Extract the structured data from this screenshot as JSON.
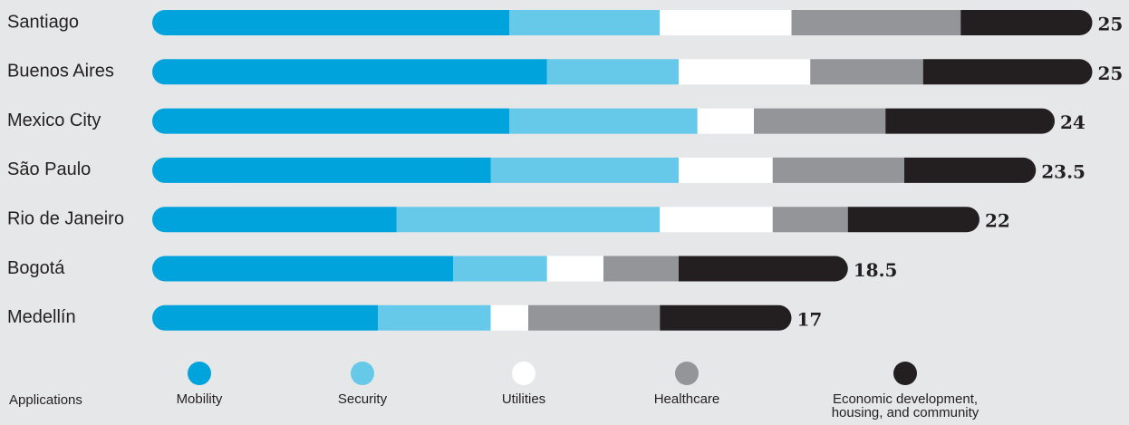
{
  "chart_data": {
    "type": "stacked-bar",
    "categories": [
      "Santiago",
      "Buenos Aires",
      "Mexico City",
      "São Paulo",
      "Rio de Janeiro",
      "Bogotá",
      "Medellín"
    ],
    "series": [
      {
        "name": "Mobility",
        "color": "#00a3dc",
        "values": [
          9.5,
          10.5,
          9.5,
          9,
          6.5,
          8,
          6
        ]
      },
      {
        "name": "Security",
        "color": "#66c9ea",
        "values": [
          4,
          3.5,
          5,
          5,
          7,
          2.5,
          3
        ]
      },
      {
        "name": "Utilities",
        "color": "#ffffff",
        "values": [
          3.5,
          3.5,
          1.5,
          2.5,
          3,
          1.5,
          1
        ]
      },
      {
        "name": "Healthcare",
        "color": "#939598",
        "values": [
          4.5,
          3,
          3.5,
          3.5,
          2,
          2,
          3.5
        ]
      },
      {
        "name": "Economic development, housing, and community",
        "color": "#231f20",
        "values": [
          3.5,
          4.5,
          4.5,
          3.5,
          3.5,
          4.5,
          3.5
        ]
      }
    ],
    "totals": [
      25,
      25,
      24,
      23.5,
      22,
      18.5,
      17
    ],
    "legend_title": "Applications"
  }
}
